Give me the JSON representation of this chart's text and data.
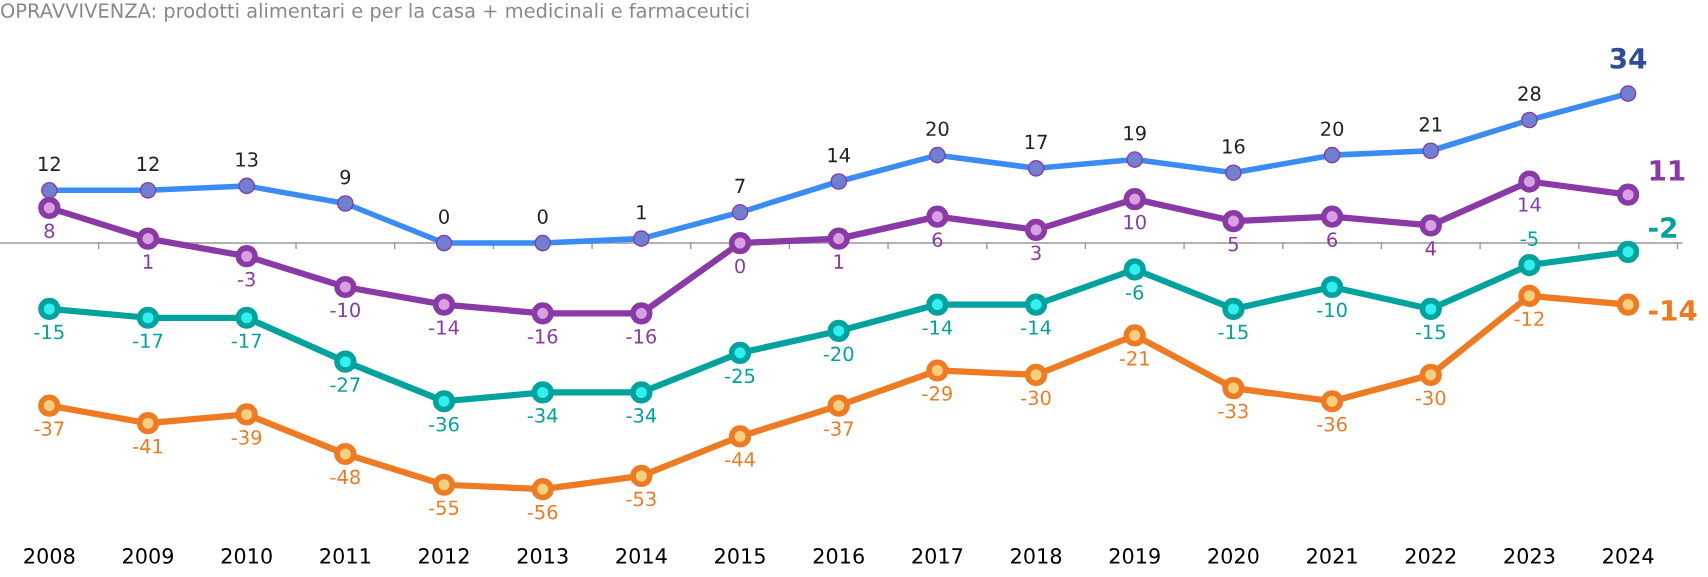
{
  "chart_data": {
    "type": "line",
    "title": "OPRAVVIVENZA: prodotti alimentari e per la casa + medicinali e farmaceutici",
    "categories": [
      "2008",
      "2009",
      "2010",
      "2011",
      "2012",
      "2013",
      "2014",
      "2015",
      "2016",
      "2017",
      "2018",
      "2019",
      "2020",
      "2021",
      "2022",
      "2023",
      "2024"
    ],
    "series": [
      {
        "color": "#3a8cf5",
        "values": [
          12,
          12,
          13,
          9,
          0,
          0,
          1,
          7,
          14,
          20,
          17,
          19,
          16,
          20,
          21,
          28,
          34
        ]
      },
      {
        "color": "#8a3aa6",
        "values": [
          8,
          1,
          -3,
          -10,
          -14,
          -16,
          -16,
          0,
          1,
          6,
          3,
          10,
          5,
          6,
          4,
          14,
          11
        ]
      },
      {
        "color": "#00a29e",
        "values": [
          -15,
          -17,
          -17,
          -27,
          -36,
          -34,
          -34,
          -25,
          -20,
          -14,
          -14,
          -6,
          -15,
          -10,
          -15,
          -5,
          -2
        ]
      },
      {
        "color": "#ee7a22",
        "values": [
          -37,
          -41,
          -39,
          -48,
          -55,
          -56,
          -53,
          -44,
          -37,
          -29,
          -30,
          -21,
          -33,
          -36,
          -30,
          -12,
          -14
        ]
      }
    ],
    "tick_labels": "x",
    "data_labels": true,
    "grid": false,
    "legend": false,
    "marker": "circle",
    "line_style": "solid"
  }
}
